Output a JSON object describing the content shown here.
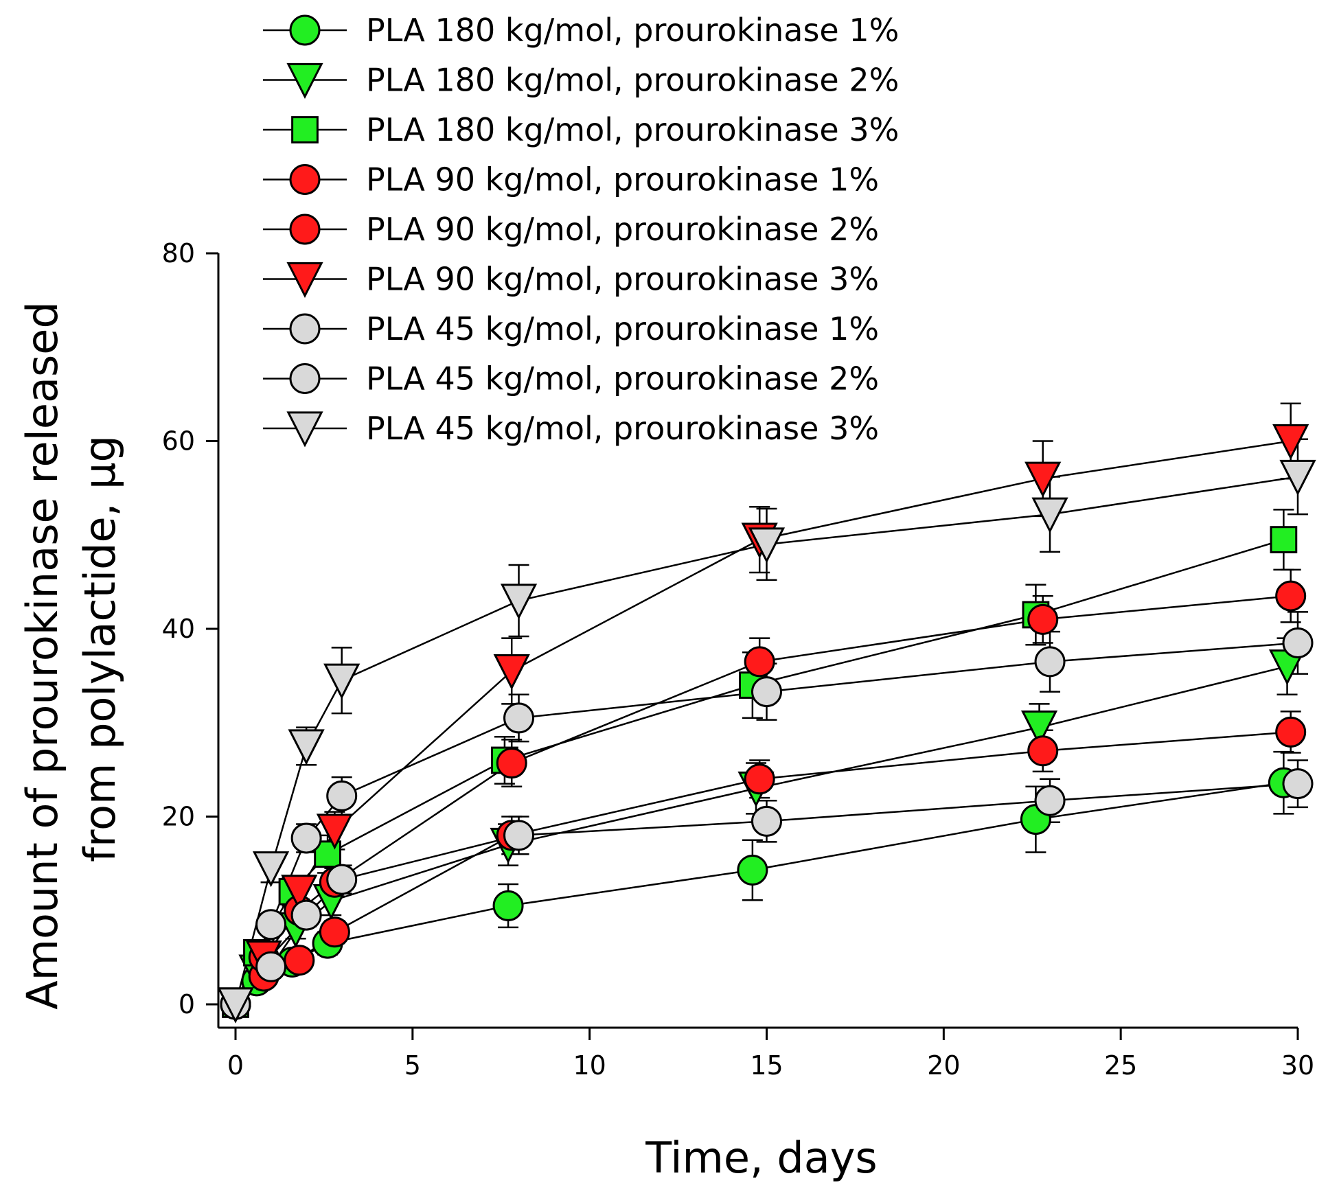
{
  "chart_data": {
    "type": "line",
    "title": "",
    "xlabel": "Time, days",
    "ylabel": "Amount of prourokinase released from polylactide, µg",
    "ylabel_lines": [
      "Amount of prourokinase released",
      "from polylactide, µg"
    ],
    "xlim": [
      -0.5,
      30
    ],
    "ylim": [
      -3,
      80
    ],
    "xticks": [
      0,
      5,
      10,
      15,
      20,
      25,
      30
    ],
    "yticks": [
      0,
      20,
      40,
      60,
      80
    ],
    "grid": false,
    "legend_position": "top",
    "series": [
      {
        "name": "PLA 180 kg/mol, prourokinase 1%",
        "marker": "circle",
        "color": "#22ee22",
        "x": [
          0,
          0.6,
          1.6,
          2.6,
          7.7,
          14.6,
          22.6,
          29.6
        ],
        "y": [
          0,
          2.5,
          4.5,
          6.5,
          10.5,
          14.3,
          19.7,
          23.6
        ],
        "err": [
          0,
          0.5,
          0.8,
          1.2,
          2.3,
          3.2,
          3.5,
          3.3
        ]
      },
      {
        "name": "PLA 180 kg/mol, prourokinase 2%",
        "marker": "triangle-down",
        "color": "#22ee22",
        "x": [
          0,
          0.6,
          1.7,
          2.7,
          7.7,
          14.7,
          22.7,
          29.7
        ],
        "y": [
          0,
          3.5,
          8.0,
          11.0,
          17.0,
          23.0,
          29.5,
          36.0
        ],
        "err": [
          0,
          0.6,
          1.0,
          1.5,
          2.2,
          2.7,
          2.5,
          3.0
        ]
      },
      {
        "name": "PLA 180 kg/mol, prourokinase 3%",
        "marker": "square",
        "color": "#22ee22",
        "x": [
          0,
          0.6,
          1.6,
          2.6,
          7.6,
          14.6,
          22.6,
          29.6
        ],
        "y": [
          0,
          5.5,
          12.0,
          16.0,
          26.0,
          34.0,
          41.5,
          49.5
        ],
        "err": [
          0,
          0.8,
          1.5,
          2.0,
          2.5,
          3.5,
          3.2,
          3.2
        ]
      },
      {
        "name": "PLA 90 kg/mol, prourokinase 1%",
        "marker": "circle",
        "color": "#ff1a1a",
        "x": [
          0,
          0.8,
          1.8,
          2.8,
          7.8,
          14.8,
          22.8,
          29.8
        ],
        "y": [
          0,
          3.0,
          4.7,
          7.7,
          18.0,
          24.0,
          27.0,
          29.0
        ],
        "err": [
          0,
          0.5,
          0.8,
          1.2,
          2.0,
          2.0,
          2.2,
          2.2
        ]
      },
      {
        "name": "PLA 90 kg/mol, prourokinase 2%",
        "marker": "circle",
        "color": "#ff1a1a",
        "x": [
          0,
          0.8,
          1.8,
          2.8,
          7.8,
          14.8,
          22.8,
          29.8
        ],
        "y": [
          0,
          5.0,
          10.0,
          13.0,
          25.7,
          36.5,
          41.0,
          43.5
        ],
        "err": [
          0,
          0.8,
          1.2,
          1.5,
          2.5,
          2.5,
          2.5,
          2.8
        ]
      },
      {
        "name": "PLA 90 kg/mol, prourokinase 3%",
        "marker": "triangle-down",
        "color": "#ff1a1a",
        "x": [
          0,
          0.8,
          1.8,
          2.8,
          7.8,
          14.8,
          22.8,
          29.8
        ],
        "y": [
          0,
          5.0,
          12.0,
          18.5,
          35.5,
          49.5,
          56.0,
          60.0
        ],
        "err": [
          0,
          1.0,
          1.5,
          2.0,
          3.5,
          3.5,
          4.0,
          4.0
        ]
      },
      {
        "name": "PLA 45 kg/mol, prourokinase 1%",
        "marker": "circle",
        "color": "#d9d9d9",
        "x": [
          0,
          1.0,
          2.0,
          3.0,
          8.0,
          15.0,
          23.0,
          30.0
        ],
        "y": [
          0,
          4.0,
          9.5,
          13.3,
          18.0,
          19.5,
          21.7,
          23.5
        ],
        "err": [
          0,
          0.7,
          1.2,
          1.5,
          2.0,
          2.2,
          2.3,
          2.5
        ]
      },
      {
        "name": "PLA 45 kg/mol, prourokinase 2%",
        "marker": "circle",
        "color": "#d9d9d9",
        "x": [
          0,
          1.0,
          2.0,
          3.0,
          8.0,
          15.0,
          23.0,
          30.0
        ],
        "y": [
          0,
          8.5,
          17.7,
          22.2,
          30.5,
          33.3,
          36.5,
          38.5
        ],
        "err": [
          0,
          1.0,
          1.5,
          2.0,
          2.5,
          3.0,
          3.2,
          3.3
        ]
      },
      {
        "name": "PLA 45 kg/mol, prourokinase 3%",
        "marker": "triangle-down",
        "color": "#d9d9d9",
        "x": [
          0,
          1.0,
          2.0,
          3.0,
          8.0,
          15.0,
          23.0,
          30.0
        ],
        "y": [
          0,
          14.5,
          27.5,
          34.5,
          43.0,
          49.0,
          52.2,
          56.2
        ],
        "err": [
          0,
          1.5,
          2.0,
          3.5,
          3.8,
          3.8,
          4.0,
          4.0
        ]
      }
    ]
  }
}
